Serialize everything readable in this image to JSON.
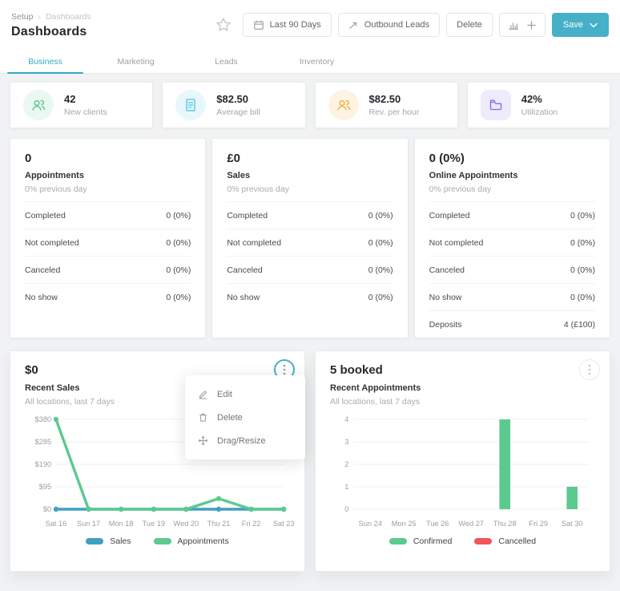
{
  "colors": {
    "accent_teal": "#45b0c7",
    "tab_active": "#35a9c2",
    "green": "#5cc98e",
    "blue": "#3f9fc4",
    "red": "#f2545b",
    "grid": "#f0f1f3",
    "tick_text": "#99a0a6"
  },
  "header": {
    "breadcrumb": {
      "root": "Setup",
      "separator": "›",
      "current": "Dashboards"
    },
    "title": "Dashboards",
    "favorite_icon": "star-icon",
    "date_range_button": {
      "label": "Last 90 Days",
      "icon": "calendar-icon"
    },
    "outbound_leads_button": {
      "label": "Outbound Leads",
      "icon": "trend-arrow-icon"
    },
    "delete_button": {
      "label": "Delete"
    },
    "widget_button": {
      "icons": [
        "bar-chart-icon",
        "plus-icon"
      ]
    },
    "save_button": {
      "label": "Save",
      "icon": "chevron-down-icon"
    }
  },
  "tabs": [
    {
      "label": "Business",
      "active": true
    },
    {
      "label": "Marketing",
      "active": false
    },
    {
      "label": "Leads",
      "active": false
    },
    {
      "label": "Inventory",
      "active": false
    }
  ],
  "kpis": [
    {
      "value": "42",
      "label": "New clients",
      "icon": "clients-icon",
      "color": "#52c18a",
      "bg": "#e9f8f0"
    },
    {
      "value": "$82.50",
      "label": "Average bill",
      "icon": "bill-icon",
      "color": "#4ec3e0",
      "bg": "#e7f7fb"
    },
    {
      "value": "$82.50",
      "label": "Rev. per hour",
      "icon": "revenue-icon",
      "color": "#f5a93b",
      "bg": "#fdf3e3"
    },
    {
      "value": "42%",
      "label": "Utilization",
      "icon": "folder-icon",
      "color": "#7d6ff0",
      "bg": "#edebfc"
    }
  ],
  "stat_panels": [
    {
      "value": "0",
      "label": "Appointments",
      "sub": "0% previous day",
      "rows": [
        {
          "label": "Completed",
          "value": "0 (0%)"
        },
        {
          "label": "Not completed",
          "value": "0 (0%)"
        },
        {
          "label": "Canceled",
          "value": "0 (0%)"
        },
        {
          "label": "No show",
          "value": "0 (0%)"
        }
      ]
    },
    {
      "value": "£0",
      "label": "Sales",
      "sub": "0% previous day",
      "rows": [
        {
          "label": "Completed",
          "value": "0 (0%)"
        },
        {
          "label": "Not completed",
          "value": "0 (0%)"
        },
        {
          "label": "Canceled",
          "value": "0 (0%)"
        },
        {
          "label": "No show",
          "value": "0 (0%)"
        }
      ]
    },
    {
      "value": "0 (0%)",
      "label": "Online Appointments",
      "sub": "0% previous day",
      "rows": [
        {
          "label": "Completed",
          "value": "0 (0%)"
        },
        {
          "label": "Not completed",
          "value": "0 (0%)"
        },
        {
          "label": "Canceled",
          "value": "0 (0%)"
        },
        {
          "label": "No show",
          "value": "0 (0%)"
        },
        {
          "label": "Deposits",
          "value": "4 (£100)"
        }
      ]
    }
  ],
  "context_menu": {
    "items": [
      {
        "label": "Edit",
        "icon": "edit-icon"
      },
      {
        "label": "Delete",
        "icon": "trash-icon"
      },
      {
        "label": "Drag/Resize",
        "icon": "move-icon"
      }
    ]
  },
  "chart_data": [
    {
      "type": "line",
      "title": "$0",
      "subtitle": "Recent Sales",
      "caption": "All locations, last 7 days",
      "x": [
        "Sat 16",
        "Sun 17",
        "Mon 18",
        "Tue 19",
        "Wed 20",
        "Thu 21",
        "Fri 22",
        "Sat 23"
      ],
      "ylim": [
        0,
        380
      ],
      "yticks": [
        380,
        285,
        190,
        95,
        0
      ],
      "ytick_labels": [
        "$380",
        "$285",
        "$190",
        "$95",
        "$0"
      ],
      "grid": true,
      "legend_position": "bottom",
      "series": [
        {
          "name": "Sales",
          "color": "#3f9fc4",
          "values": [
            0,
            0,
            0,
            0,
            0,
            0,
            0,
            0
          ]
        },
        {
          "name": "Appointments",
          "color": "#5cc98e",
          "values": [
            380,
            0,
            0,
            0,
            0,
            45,
            0,
            0
          ]
        }
      ]
    },
    {
      "type": "bar",
      "title": "5 booked",
      "subtitle": "Recent Appointments",
      "caption": "All locations, last 7 days",
      "x": [
        "Sun 24",
        "Mon 25",
        "Tue 26",
        "Wed 27",
        "Thu 28",
        "Fri 29",
        "Sat 30"
      ],
      "ylim": [
        0,
        4
      ],
      "yticks": [
        4,
        3,
        2,
        1,
        0
      ],
      "ytick_labels": [
        "4",
        "3",
        "2",
        "1",
        "0"
      ],
      "grid": true,
      "legend_position": "bottom",
      "series": [
        {
          "name": "Confirmed",
          "color": "#5cc98e",
          "values": [
            0,
            0,
            0,
            0,
            4,
            0,
            1
          ]
        },
        {
          "name": "Cancelled",
          "color": "#f2545b",
          "values": [
            0,
            0,
            0,
            0,
            0,
            0,
            0
          ]
        }
      ]
    }
  ]
}
